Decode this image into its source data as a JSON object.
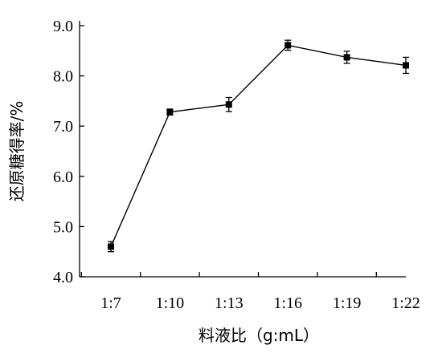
{
  "chart_data": {
    "type": "line",
    "xlabel": "料液比（g:mL）",
    "ylabel": "还原糖得率/%",
    "categories": [
      "1:7",
      "1:10",
      "1:13",
      "1:16",
      "1:19",
      "1:22"
    ],
    "series": [
      {
        "values": [
          4.6,
          7.28,
          7.43,
          8.61,
          8.37,
          8.21
        ],
        "error": [
          0.1,
          0.06,
          0.14,
          0.1,
          0.12,
          0.16
        ]
      }
    ],
    "ylim": [
      4.0,
      9.0
    ],
    "yticks": [
      4.0,
      5.0,
      6.0,
      7.0,
      8.0,
      9.0
    ],
    "ytick_labels": [
      "4.0",
      "5.0",
      "6.0",
      "7.0",
      "8.0",
      "9.0"
    ],
    "grid": false,
    "marker": "square",
    "color": "#000000"
  }
}
